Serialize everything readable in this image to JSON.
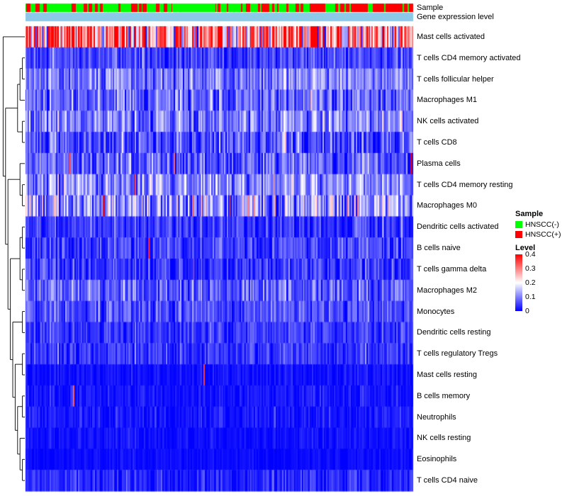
{
  "annotation_labels": {
    "sample": "Sample",
    "gene_expression": "Gene expression level"
  },
  "legend": {
    "sample_title": "Sample",
    "sample_items": [
      {
        "label": "HNSCC(-)",
        "color": "#00FF00"
      },
      {
        "label": "HNSCC(+)",
        "color": "#FF0000"
      }
    ],
    "level_title": "Level",
    "level_ticks": [
      "0.4",
      "0.3",
      "0.2",
      "0.1",
      "0"
    ]
  },
  "colors": {
    "heat_low": "#0000FF",
    "heat_mid": "#FFFFFF",
    "heat_high": "#FF0000",
    "gene_expression_bar": "#8CC8E8",
    "annotation_negative": "#00FF00",
    "annotation_positive": "#FF0000",
    "background": "#FFFFFF"
  },
  "chart_data": {
    "type": "heatmap",
    "n_samples": 300,
    "value_range": [
      0,
      0.4
    ],
    "colormap_stops": {
      "0": "#0000FF",
      "0.2": "#FFFFFF",
      "0.4": "#FF0000"
    },
    "legend_position": "right",
    "top_annotation": {
      "name": "Sample",
      "groups": [
        "HNSCC(-)",
        "HNSCC(+)"
      ],
      "positive_probability": {
        "left": 0.13,
        "mid": 0.3,
        "right": 0.62,
        "left_end_fraction": 0.6,
        "mid_end_fraction": 0.8
      }
    },
    "second_annotation": {
      "name": "Gene expression level",
      "color": "#8CC8E8"
    },
    "rows": [
      {
        "name": "Mast cells activated",
        "mean": 0.3,
        "sd": 0.1,
        "spike_p": 0,
        "dip_p": 0.05
      },
      {
        "name": "T cells CD4 memory activated",
        "mean": 0.055,
        "sd": 0.035,
        "spike_p": 0.003,
        "dip_p": 0
      },
      {
        "name": "T cells follicular helper",
        "mean": 0.1,
        "sd": 0.04,
        "spike_p": 0,
        "dip_p": 0
      },
      {
        "name": "Macrophages M1",
        "mean": 0.08,
        "sd": 0.045,
        "spike_p": 0.002,
        "dip_p": 0
      },
      {
        "name": "NK cells activated",
        "mean": 0.1,
        "sd": 0.045,
        "spike_p": 0,
        "dip_p": 0
      },
      {
        "name": "T cells CD8",
        "mean": 0.065,
        "sd": 0.05,
        "spike_p": 0.002,
        "dip_p": 0
      },
      {
        "name": "Plasma cells",
        "mean": 0.07,
        "sd": 0.05,
        "spike_p": 0.008,
        "dip_p": 0
      },
      {
        "name": "T cells CD4 memory resting",
        "mean": 0.11,
        "sd": 0.05,
        "spike_p": 0.002,
        "dip_p": 0
      },
      {
        "name": "Macrophages M0",
        "mean": 0.12,
        "sd": 0.07,
        "spike_p": 0.01,
        "dip_p": 0
      },
      {
        "name": "Dendritic cells activated",
        "mean": 0.045,
        "sd": 0.03,
        "spike_p": 0.002,
        "dip_p": 0
      },
      {
        "name": "B cells naive",
        "mean": 0.05,
        "sd": 0.035,
        "spike_p": 0.002,
        "dip_p": 0
      },
      {
        "name": "T cells gamma delta",
        "mean": 0.045,
        "sd": 0.035,
        "spike_p": 0.002,
        "dip_p": 0
      },
      {
        "name": "Macrophages M2",
        "mean": 0.075,
        "sd": 0.04,
        "spike_p": 0,
        "dip_p": 0
      },
      {
        "name": "Monocytes",
        "mean": 0.06,
        "sd": 0.035,
        "spike_p": 0,
        "dip_p": 0
      },
      {
        "name": "Dendritic cells resting",
        "mean": 0.04,
        "sd": 0.028,
        "spike_p": 0,
        "dip_p": 0
      },
      {
        "name": "T cells regulatory Tregs",
        "mean": 0.042,
        "sd": 0.03,
        "spike_p": 0,
        "dip_p": 0
      },
      {
        "name": "Mast cells resting",
        "mean": 0.012,
        "sd": 0.016,
        "spike_p": 0.004,
        "dip_p": 0
      },
      {
        "name": "B cells memory",
        "mean": 0.015,
        "sd": 0.018,
        "spike_p": 0.003,
        "dip_p": 0
      },
      {
        "name": "Neutrophils",
        "mean": 0.02,
        "sd": 0.02,
        "spike_p": 0,
        "dip_p": 0
      },
      {
        "name": "NK cells resting",
        "mean": 0.012,
        "sd": 0.013,
        "spike_p": 0,
        "dip_p": 0
      },
      {
        "name": "Eosinophils",
        "mean": 0.008,
        "sd": 0.01,
        "spike_p": 0,
        "dip_p": 0
      },
      {
        "name": "T cells CD4 naive",
        "mean": 0.03,
        "sd": 0.03,
        "spike_p": 0,
        "dip_p": 0
      }
    ]
  }
}
